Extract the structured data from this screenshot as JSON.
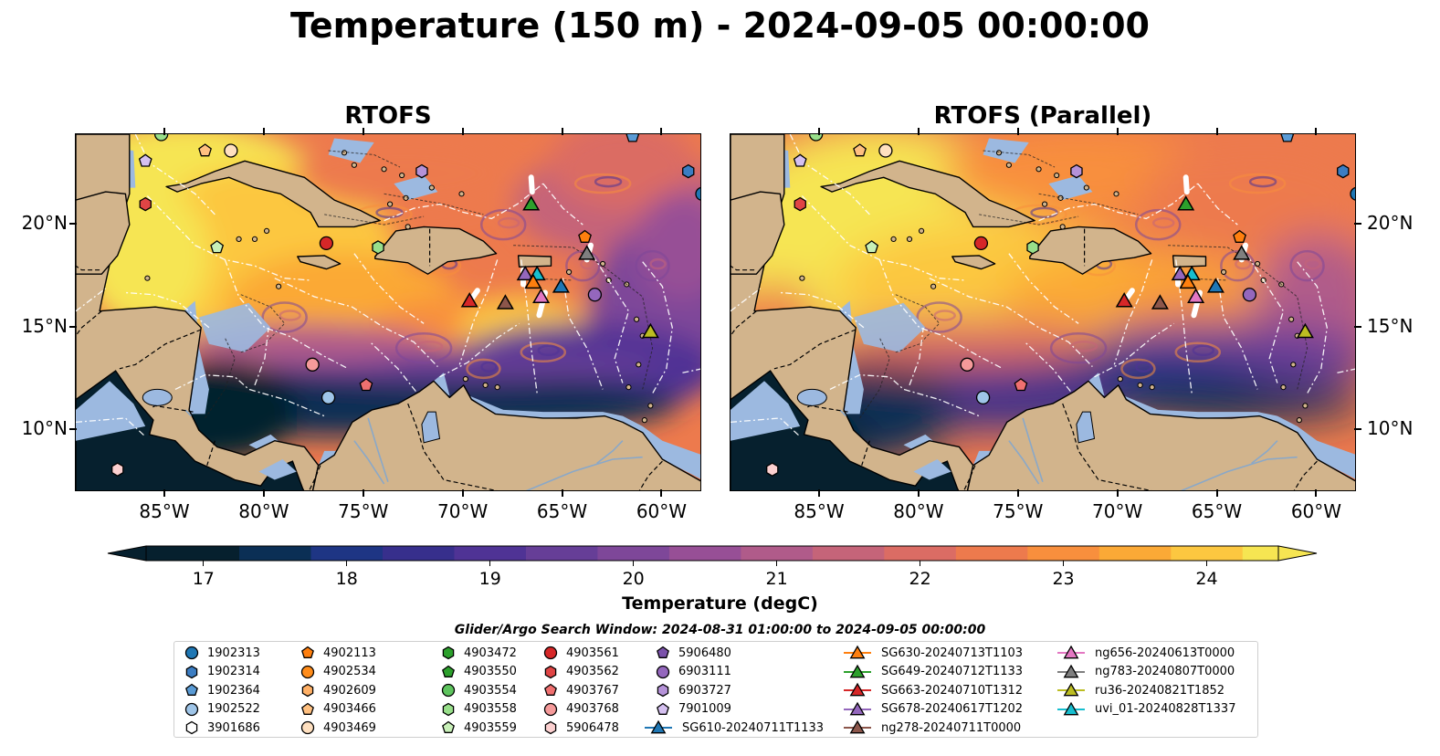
{
  "title": "Temperature (150 m) - 2024-09-05 00:00:00",
  "panels": [
    {
      "id": "left",
      "title": "RTOFS"
    },
    {
      "id": "right",
      "title": "RTOFS (Parallel)"
    }
  ],
  "axes": {
    "lon_labels": [
      "85°W",
      "80°W",
      "75°W",
      "70°W",
      "65°W",
      "60°W"
    ],
    "lat_labels": [
      "20°N",
      "15°N",
      "10°N"
    ],
    "lon_range": [
      -89.5,
      -58.0
    ],
    "lat_range": [
      7.0,
      24.4
    ]
  },
  "colorbar": {
    "label": "Temperature (degC)",
    "ticks": [
      "17",
      "18",
      "19",
      "20",
      "21",
      "22",
      "23",
      "24"
    ],
    "range": [
      16.6,
      24.5
    ],
    "extend": "both",
    "colors": [
      "#06202e",
      "#0b2f55",
      "#1e3584",
      "#372f8c",
      "#4f3395",
      "#663e97",
      "#7e4799",
      "#974f96",
      "#b05b8a",
      "#c56479",
      "#db6c64",
      "#ed7a4d",
      "#f88f3d",
      "#fba936",
      "#fcc740",
      "#f6e552"
    ]
  },
  "colors": {
    "land": "#d2b48c",
    "shelf": "#9cb9e0",
    "coast": "#000000",
    "eez": "#ffffff"
  },
  "search_window": "Glider/Argo Search Window: 2024-08-31 01:00:00 to 2024-09-05 00:00:00",
  "legend": [
    {
      "label": "1902313",
      "marker": "circle",
      "color": "#1f77b4"
    },
    {
      "label": "1902314",
      "marker": "hexagon",
      "color": "#3b7dc2"
    },
    {
      "label": "1902364",
      "marker": "pentagon",
      "color": "#5a9bd5"
    },
    {
      "label": "1902522",
      "marker": "circle",
      "color": "#9fc5e8"
    },
    {
      "label": "3901686",
      "marker": "hexagon-open",
      "color": "#ffffff"
    },
    {
      "label": "4902113",
      "marker": "pentagon",
      "color": "#ff7f0e"
    },
    {
      "label": "4902534",
      "marker": "circle",
      "color": "#ff8c1a"
    },
    {
      "label": "4902609",
      "marker": "hexagon",
      "color": "#ffb066"
    },
    {
      "label": "4903466",
      "marker": "pentagon",
      "color": "#ffc080"
    },
    {
      "label": "4903469",
      "marker": "circle",
      "color": "#ffe0c0"
    },
    {
      "label": "4903472",
      "marker": "hexagon",
      "color": "#2ca02c"
    },
    {
      "label": "4903550",
      "marker": "pentagon",
      "color": "#2ca02c"
    },
    {
      "label": "4903554",
      "marker": "circle",
      "color": "#5ec45e"
    },
    {
      "label": "4903558",
      "marker": "hexagon",
      "color": "#98df8a"
    },
    {
      "label": "4903559",
      "marker": "pentagon",
      "color": "#c8f0b8"
    },
    {
      "label": "4903561",
      "marker": "circle",
      "color": "#d62728"
    },
    {
      "label": "4903562",
      "marker": "hexagon",
      "color": "#e04545"
    },
    {
      "label": "4903767",
      "marker": "pentagon",
      "color": "#f07070"
    },
    {
      "label": "4903768",
      "marker": "circle",
      "color": "#f59a9a"
    },
    {
      "label": "5906478",
      "marker": "hexagon",
      "color": "#fcd0d0"
    },
    {
      "label": "5906480",
      "marker": "pentagon",
      "color": "#7b52ab"
    },
    {
      "label": "6903111",
      "marker": "circle",
      "color": "#9467bd"
    },
    {
      "label": "6903727",
      "marker": "hexagon",
      "color": "#b592d8"
    },
    {
      "label": "7901009",
      "marker": "pentagon",
      "color": "#d5c0f0"
    },
    {
      "label": "SG610-20240711T1133",
      "marker": "triangle-line",
      "color": "#1f77b4"
    },
    {
      "label": "SG630-20240713T1103",
      "marker": "triangle-line",
      "color": "#ff7f0e"
    },
    {
      "label": "SG649-20240712T1133",
      "marker": "triangle-line",
      "color": "#2ca02c"
    },
    {
      "label": "SG663-20240710T1312",
      "marker": "triangle-line",
      "color": "#d62728"
    },
    {
      "label": "SG678-20240617T1202",
      "marker": "triangle-line",
      "color": "#9467bd"
    },
    {
      "label": "ng278-20240711T0000",
      "marker": "triangle-line",
      "color": "#8c564b"
    },
    {
      "label": "ng656-20240613T0000",
      "marker": "triangle-line",
      "color": "#e377c2"
    },
    {
      "label": "ng783-20240807T0000",
      "marker": "triangle-line",
      "color": "#7f7f7f"
    },
    {
      "label": "ru36-20240821T1852",
      "marker": "triangle-line",
      "color": "#bcbd22"
    },
    {
      "label": "uvi_01-20240828T1337",
      "marker": "triangle-line",
      "color": "#17becf"
    }
  ],
  "markers": [
    {
      "lon": -85.2,
      "lat": 24.4,
      "marker": "circle",
      "color": "#98df8a"
    },
    {
      "lon": -86.0,
      "lat": 23.1,
      "marker": "pentagon",
      "color": "#d5c0f0"
    },
    {
      "lon": -83.0,
      "lat": 23.6,
      "marker": "pentagon",
      "color": "#ffc080"
    },
    {
      "lon": -81.7,
      "lat": 23.6,
      "marker": "circle",
      "color": "#ffe0c0"
    },
    {
      "lon": -86.0,
      "lat": 21.0,
      "marker": "hexagon",
      "color": "#e04545"
    },
    {
      "lon": -82.4,
      "lat": 18.9,
      "marker": "pentagon",
      "color": "#c8f0b8"
    },
    {
      "lon": -76.9,
      "lat": 19.1,
      "marker": "circle",
      "color": "#d62728"
    },
    {
      "lon": -74.3,
      "lat": 18.9,
      "marker": "hexagon",
      "color": "#98df8a"
    },
    {
      "lon": -72.1,
      "lat": 22.6,
      "marker": "hexagon",
      "color": "#b592d8"
    },
    {
      "lon": -61.5,
      "lat": 24.3,
      "marker": "pentagon",
      "color": "#5a9bd5"
    },
    {
      "lon": -58.7,
      "lat": 22.6,
      "marker": "hexagon",
      "color": "#3b7dc2"
    },
    {
      "lon": -58.0,
      "lat": 21.5,
      "marker": "circle",
      "color": "#1f77b4"
    },
    {
      "lon": -63.9,
      "lat": 19.4,
      "marker": "pentagon",
      "color": "#ff7f0e"
    },
    {
      "lon": -63.4,
      "lat": 16.6,
      "marker": "circle",
      "color": "#9467bd"
    },
    {
      "lon": -77.6,
      "lat": 13.2,
      "marker": "circle",
      "color": "#f59a9a"
    },
    {
      "lon": -76.8,
      "lat": 11.6,
      "marker": "circle",
      "color": "#9fc5e8"
    },
    {
      "lon": -74.9,
      "lat": 12.2,
      "marker": "pentagon",
      "color": "#f07070"
    },
    {
      "lon": -87.4,
      "lat": 8.1,
      "marker": "hexagon",
      "color": "#fcd0d0"
    },
    {
      "lon": -66.6,
      "lat": 21.0,
      "marker": "triangle",
      "color": "#2ca02c"
    },
    {
      "lon": -69.7,
      "lat": 16.3,
      "marker": "triangle",
      "color": "#d62728"
    },
    {
      "lon": -67.9,
      "lat": 16.2,
      "marker": "triangle",
      "color": "#8c564b"
    },
    {
      "lon": -66.9,
      "lat": 17.6,
      "marker": "triangle",
      "color": "#9467bd"
    },
    {
      "lon": -66.3,
      "lat": 17.6,
      "marker": "triangle",
      "color": "#17becf"
    },
    {
      "lon": -66.5,
      "lat": 17.2,
      "marker": "triangle",
      "color": "#ff7f0e"
    },
    {
      "lon": -66.1,
      "lat": 16.5,
      "marker": "triangle",
      "color": "#e377c2"
    },
    {
      "lon": -65.1,
      "lat": 17.0,
      "marker": "triangle",
      "color": "#1f77b4"
    },
    {
      "lon": -63.8,
      "lat": 18.6,
      "marker": "triangle",
      "color": "#7f7f7f"
    },
    {
      "lon": -60.6,
      "lat": 14.8,
      "marker": "triangle",
      "color": "#bcbd22"
    }
  ]
}
